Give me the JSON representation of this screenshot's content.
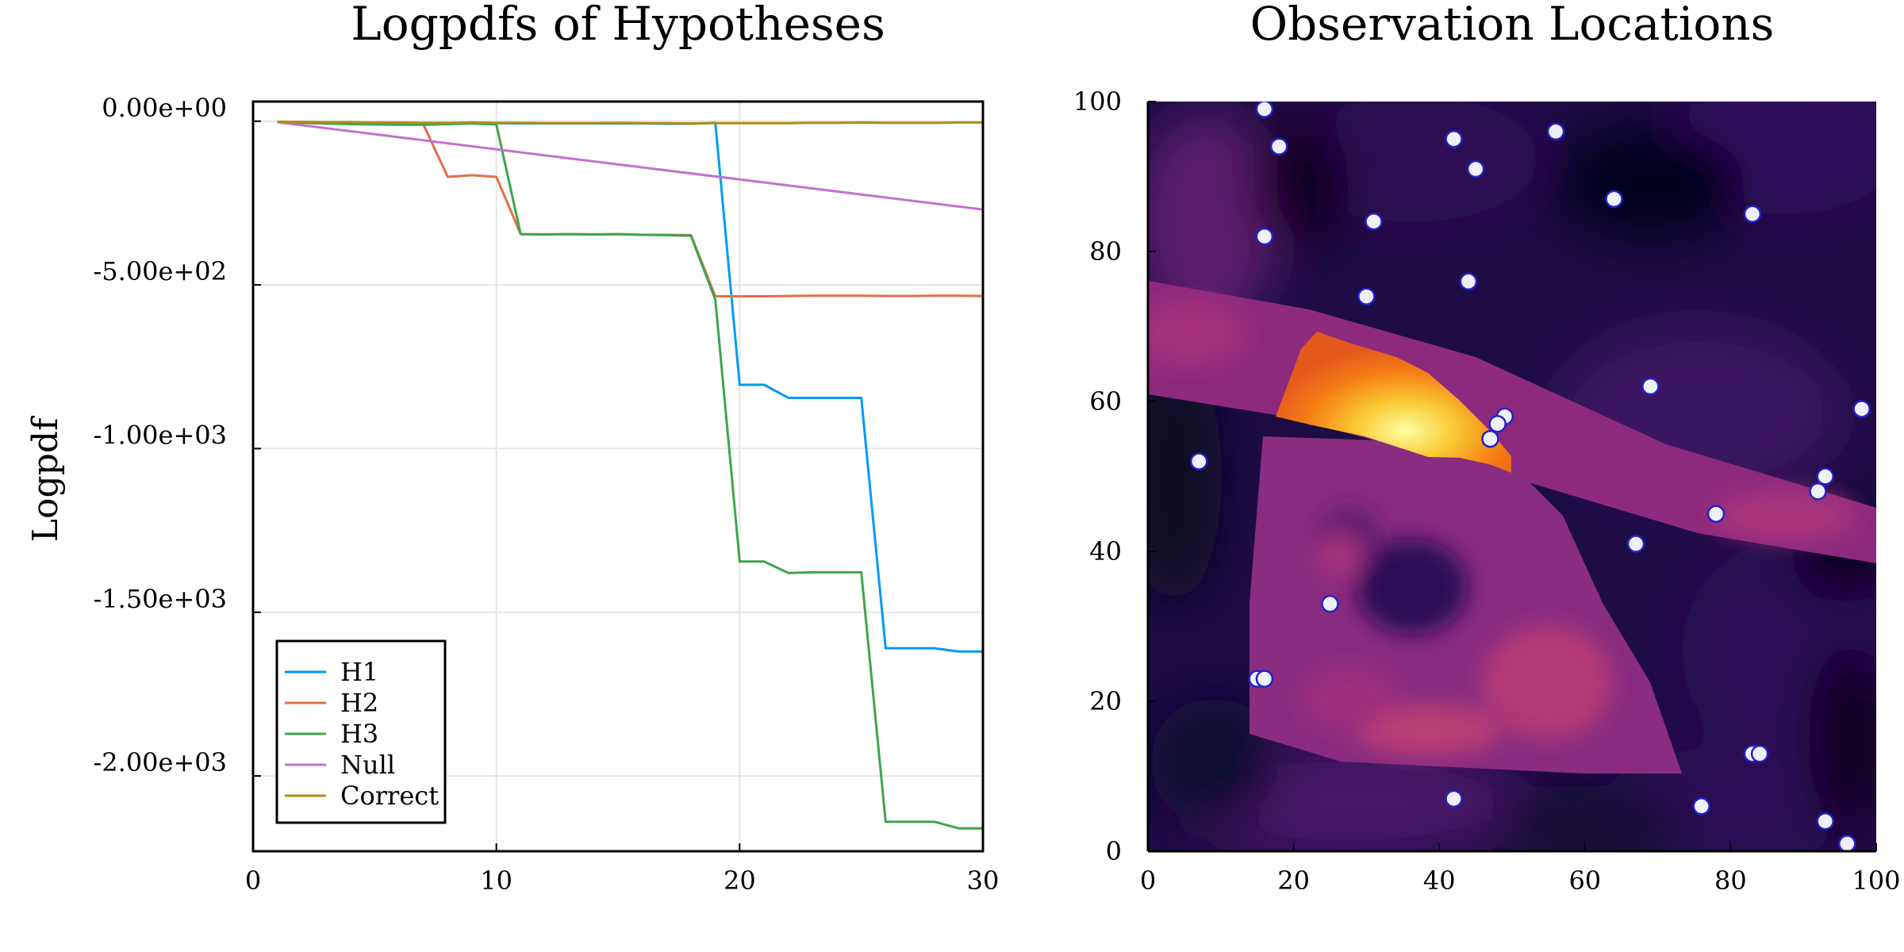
{
  "chart_data": [
    {
      "type": "line",
      "title": "Logpdfs of Hypotheses",
      "xlabel": "",
      "ylabel": "Logpdf",
      "xlim": [
        0,
        30
      ],
      "ylim": [
        -2230,
        60
      ],
      "xticks": [
        0,
        10,
        20,
        30
      ],
      "xtick_labels": [
        "0",
        "10",
        "20",
        "30"
      ],
      "yticks": [
        0,
        -500,
        -1000,
        -1500,
        -2000
      ],
      "ytick_labels": [
        "0.00e+00",
        "-5.00e+02",
        "-1.00e+03",
        "-1.50e+03",
        "-2.00e+03"
      ],
      "grid": true,
      "legend_position": "bottom-left",
      "series": [
        {
          "name": "H1",
          "color": "#009AFA",
          "x": [
            1,
            2,
            3,
            4,
            5,
            6,
            7,
            8,
            9,
            10,
            11,
            12,
            13,
            14,
            15,
            16,
            17,
            18,
            19,
            20,
            21,
            22,
            23,
            24,
            25,
            26,
            27,
            28,
            29,
            30
          ],
          "values": [
            -2,
            -4,
            -5,
            -6,
            -6,
            -7,
            -7,
            -7,
            -6,
            -6,
            -7,
            -7,
            -7,
            -7,
            -7,
            -7,
            -8,
            -8,
            -5,
            -805,
            -805,
            -845,
            -845,
            -845,
            -845,
            -1610,
            -1610,
            -1610,
            -1620,
            -1620
          ]
        },
        {
          "name": "H2",
          "color": "#E36F47",
          "x": [
            1,
            2,
            3,
            4,
            5,
            6,
            7,
            8,
            9,
            10,
            11,
            12,
            13,
            14,
            15,
            16,
            17,
            18,
            19,
            20,
            21,
            22,
            23,
            24,
            25,
            26,
            27,
            28,
            29,
            30
          ],
          "values": [
            -2,
            -5,
            -7,
            -8,
            -9,
            -10,
            -10,
            -170,
            -165,
            -170,
            -345,
            -346,
            -345,
            -346,
            -345,
            -347,
            -347,
            -348,
            -535,
            -535,
            -535,
            -534,
            -533,
            -533,
            -533,
            -534,
            -534,
            -533,
            -533,
            -534
          ]
        },
        {
          "name": "H3",
          "color": "#3EA44E",
          "x": [
            1,
            2,
            3,
            4,
            5,
            6,
            7,
            8,
            9,
            10,
            11,
            12,
            13,
            14,
            15,
            16,
            17,
            18,
            19,
            20,
            21,
            22,
            23,
            24,
            25,
            26,
            27,
            28,
            29,
            30
          ],
          "values": [
            -2,
            -5,
            -7,
            -9,
            -10,
            -11,
            -11,
            -9,
            -7,
            -10,
            -345,
            -346,
            -345,
            -346,
            -345,
            -347,
            -348,
            -350,
            -545,
            -1345,
            -1345,
            -1380,
            -1378,
            -1378,
            -1378,
            -2140,
            -2140,
            -2140,
            -2160,
            -2160
          ]
        },
        {
          "name": "Null",
          "color": "#C271D2",
          "x": [
            1,
            30
          ],
          "values": [
            -3,
            -270
          ]
        },
        {
          "name": "Correct",
          "color": "#AC8E18",
          "x": [
            1,
            2,
            3,
            4,
            5,
            6,
            7,
            8,
            9,
            10,
            11,
            12,
            13,
            14,
            15,
            16,
            17,
            18,
            19,
            20,
            21,
            22,
            23,
            24,
            25,
            26,
            27,
            28,
            29,
            30
          ],
          "values": [
            -2,
            -2,
            -3,
            -3,
            -4,
            -4,
            -5,
            -5,
            -4,
            -5,
            -5,
            -6,
            -6,
            -6,
            -5,
            -6,
            -6,
            -7,
            -6,
            -6,
            -6,
            -6,
            -5,
            -5,
            -4,
            -5,
            -5,
            -5,
            -4,
            -4
          ]
        }
      ]
    },
    {
      "type": "scatter",
      "title": "Observation Locations",
      "xlabel": "",
      "ylabel": "",
      "xlim": [
        0,
        100
      ],
      "ylim": [
        0,
        100
      ],
      "xticks": [
        0,
        20,
        40,
        60,
        80,
        100
      ],
      "xtick_labels": [
        "0",
        "20",
        "40",
        "60",
        "80",
        "100"
      ],
      "yticks": [
        0,
        20,
        40,
        60,
        80,
        100
      ],
      "ytick_labels": [
        "0",
        "20",
        "40",
        "60",
        "80",
        "100"
      ],
      "background": "heatmap (inferno colormap)",
      "point_color": "#F0F0FA",
      "point_edge_color": "#2222C8",
      "points": [
        {
          "x": 16,
          "y": 99
        },
        {
          "x": 18,
          "y": 94
        },
        {
          "x": 42,
          "y": 95
        },
        {
          "x": 45,
          "y": 91
        },
        {
          "x": 56,
          "y": 96
        },
        {
          "x": 64,
          "y": 87
        },
        {
          "x": 83,
          "y": 85
        },
        {
          "x": 31,
          "y": 84
        },
        {
          "x": 16,
          "y": 82
        },
        {
          "x": 44,
          "y": 76
        },
        {
          "x": 30,
          "y": 74
        },
        {
          "x": 69,
          "y": 62
        },
        {
          "x": 98,
          "y": 59
        },
        {
          "x": 49,
          "y": 58
        },
        {
          "x": 48,
          "y": 57
        },
        {
          "x": 47,
          "y": 55
        },
        {
          "x": 7,
          "y": 52
        },
        {
          "x": 93,
          "y": 50
        },
        {
          "x": 92,
          "y": 48
        },
        {
          "x": 78,
          "y": 45
        },
        {
          "x": 67,
          "y": 41
        },
        {
          "x": 25,
          "y": 33
        },
        {
          "x": 15,
          "y": 23
        },
        {
          "x": 16,
          "y": 23
        },
        {
          "x": 83,
          "y": 13
        },
        {
          "x": 84,
          "y": 13
        },
        {
          "x": 42,
          "y": 7
        },
        {
          "x": 76,
          "y": 6
        },
        {
          "x": 93,
          "y": 4
        },
        {
          "x": 96,
          "y": 1
        }
      ]
    }
  ]
}
